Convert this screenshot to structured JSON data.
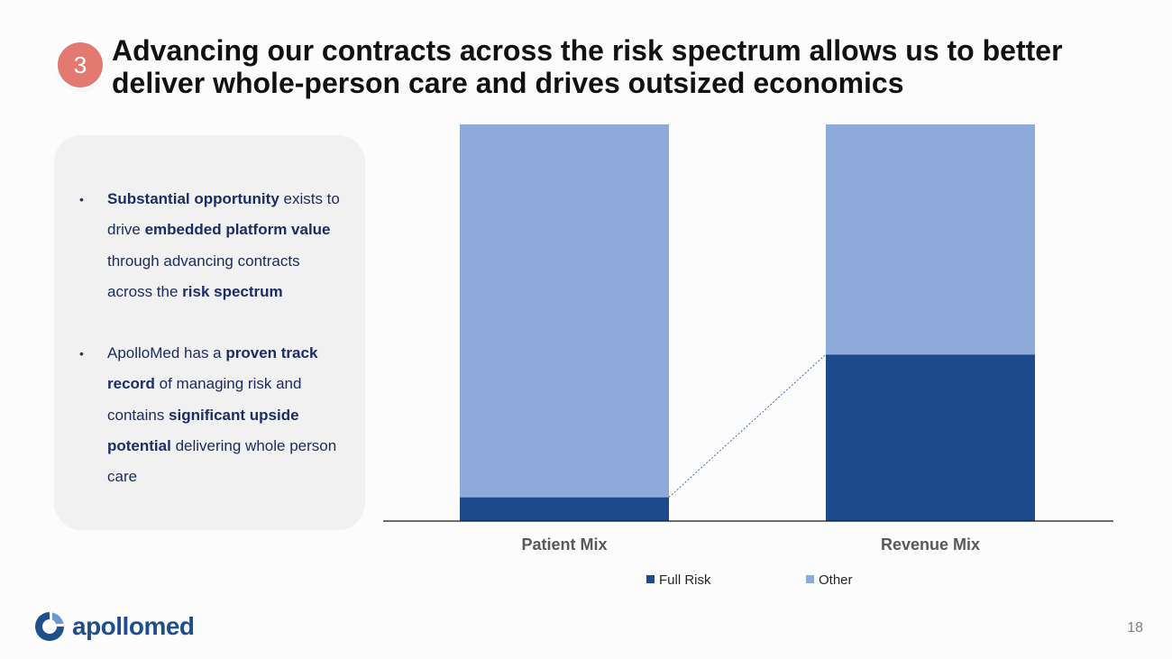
{
  "slide": {
    "badge": "3",
    "title": "Advancing our contracts across the risk spectrum allows us to better deliver whole-person care and drives outsized economics",
    "page_number": "18"
  },
  "bullets": [
    {
      "parts": [
        {
          "text": "Substantial opportunity",
          "bold": true
        },
        {
          "text": " exists to drive ",
          "bold": false
        },
        {
          "text": "embedded platform value",
          "bold": true
        },
        {
          "text": " through advancing contracts across the ",
          "bold": false
        },
        {
          "text": "risk spectrum",
          "bold": true
        }
      ]
    },
    {
      "parts": [
        {
          "text": "ApolloMed has a ",
          "bold": false
        },
        {
          "text": "proven track record",
          "bold": true
        },
        {
          "text": " of managing risk and contains ",
          "bold": false
        },
        {
          "text": "significant upside potential",
          "bold": true
        },
        {
          "text": " delivering whole person care",
          "bold": false
        }
      ]
    }
  ],
  "chart_data": {
    "type": "bar",
    "stacked": true,
    "categories": [
      "Patient Mix",
      "Revenue Mix"
    ],
    "series": [
      {
        "name": "Full Risk",
        "values": [
          6,
          42
        ],
        "color": "#1c4a8d"
      },
      {
        "name": "Other",
        "values": [
          94,
          58
        ],
        "color": "#8eaadb"
      }
    ],
    "ylim": [
      0,
      100
    ],
    "title": "",
    "xlabel": "",
    "ylabel": "",
    "legend": "bottom",
    "connector": "dashed line from top of Patient Mix Full Risk to top of Revenue Mix Full Risk"
  },
  "logo": {
    "text": "apollomed",
    "icon": "apollomed-logo-icon",
    "color": "#1e4e8c"
  }
}
